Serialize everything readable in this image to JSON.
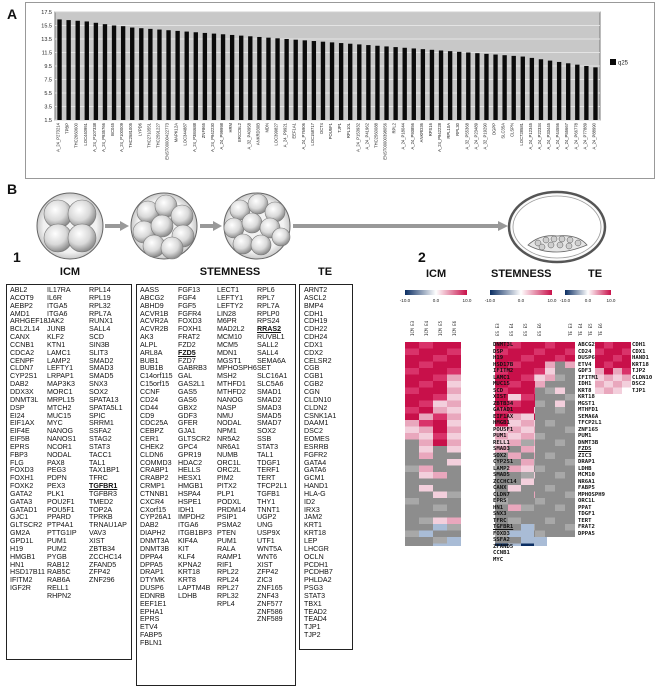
{
  "panels": {
    "a": "A",
    "b": "B",
    "one": "1",
    "two": "2"
  },
  "chart_data": {
    "type": "bar",
    "ylim": [
      1.5,
      17.5
    ],
    "yticks": [
      "17.5",
      "15.5",
      "13.5",
      "11.5",
      "9.5",
      "7.5",
      "5.5",
      "3.5",
      "1.5"
    ],
    "legend": "q25",
    "legend_position": "right",
    "grid": true,
    "series": [
      {
        "name": "q25",
        "values": [
          16.4,
          16.3,
          16.2,
          16.1,
          15.9,
          15.7,
          15.5,
          15.4,
          15.2,
          15.1,
          15.0,
          14.9,
          14.8,
          14.7,
          14.6,
          14.5,
          14.4,
          14.3,
          14.2,
          14.1,
          14.0,
          13.9,
          13.8,
          13.7,
          13.6,
          13.5,
          13.4,
          13.3,
          13.2,
          13.1,
          13.0,
          12.9,
          12.8,
          12.7,
          12.6,
          12.5,
          12.4,
          12.3,
          12.2,
          12.1,
          12.0,
          11.9,
          11.8,
          11.7,
          11.6,
          11.5,
          11.4,
          11.3,
          11.2,
          11.1,
          11.0,
          10.9,
          10.7,
          10.5,
          10.3,
          10.1,
          9.9,
          9.7,
          9.5,
          9.3
        ]
      }
    ],
    "categories": [
      "A_24_P273214",
      "TPBP",
      "THC2660600",
      "LOC440951",
      "A_24_P107338",
      "A_24_P935766",
      "BC045",
      "A_24_P100009",
      "THC2581005",
      "LYPD6",
      "THC2710551",
      "THC2591227",
      "ENST00000422773",
      "MAPK12A",
      "LOC344887",
      "A_24_P384688",
      "ZNF865",
      "A_24_P942230",
      "A_24_P99998",
      "HRM",
      "ERCC5L2",
      "A_32_P40958",
      "ANKRD30B",
      "MDN",
      "LOC399827",
      "A_24_P9921",
      "EEF1A1",
      "A_24_P76906",
      "LOC158717",
      "OCT4",
      "POU5F1",
      "TJP1",
      "RPL10L",
      "A_24_P153932",
      "A_24_P41962",
      "THC2560088",
      "ENST00000398056",
      "RPL2",
      "A_24_P18044",
      "A_24_P93856",
      "ANKRD36",
      "RPS16",
      "A_24_P942228",
      "RPL10A",
      "RPL30",
      "A_32_P55368",
      "A_24_P23489",
      "A_32_P19290",
      "DGPP",
      "SLC35A",
      "CLSPN",
      "LOC728581",
      "A_24_P12345",
      "A_24_P22334",
      "A_24_P33445",
      "A_24_P44556",
      "A_24_P55667",
      "A_24_P66778",
      "A_24_P77889",
      "A_24_P88990"
    ]
  },
  "lists": {
    "icm": {
      "title": "ICM",
      "col1": [
        "ABL2",
        "ACOT9",
        "AEBP2",
        "AMD1",
        "ARHGEF18",
        "BCL2L14",
        "CANX",
        "CCNB1",
        "CDCA2",
        "CENPF",
        "CLDN7",
        "CYP2S1",
        "DAB2",
        "DDX3X",
        "DNMT3L",
        "DSP",
        "EI24",
        "EIF1AX",
        "EIF4E",
        "EIF5B",
        "EPRS",
        "FBP3",
        "FLG",
        "FOXD3",
        "FOXH1",
        "FOXK2",
        "GATA2",
        "GATA3",
        "GATAD1",
        "GJC1",
        "GLTSCR2",
        "GM2A",
        "GPD1L",
        "H19",
        "HMGB1",
        "HN1",
        "HSD17B11",
        "IFITM2",
        "IGF2R"
      ],
      "col2": [
        "IL17RA",
        "IL6R",
        "ITGA5",
        "ITGA6",
        "JAK2",
        "JUNB",
        "KLF2",
        "KTN1",
        "LAMC1",
        "LAMP2",
        "LEFTY1",
        "LRPAP1",
        "MAP3K3",
        "MORC1",
        "MRPL15",
        "MTCH2",
        "MUC15",
        "MYC",
        "NANOG",
        "NANOS1",
        "NCOR1",
        "NODAL",
        "PAX8",
        "PEG3",
        "PDPN",
        "PEX3",
        "PLK1",
        "POU2F1",
        "POU5F1",
        "PPARD",
        "PTP4A1",
        "PTTG1IP",
        "PUM1",
        "PUM2",
        "PYGB",
        "RAB12",
        "RAB5C",
        "RAB6A",
        "RELL1",
        "RHPN2"
      ],
      "col3": [
        "RPL14",
        "RPL19",
        "RPL32",
        "RPL7A",
        "RUNX1",
        "SALL4",
        "SCD",
        "SIN3B",
        "SLIT3",
        "SMAD2",
        "SMAD3",
        "SMAD5",
        "SNX3",
        "SOX2",
        "SPATA13",
        "SPATA5L1",
        "SPIC",
        "SRRM1",
        "SSFA2",
        "STAG2",
        "STAT3",
        "TACC1",
        "TAL1",
        "TAX1BP1",
        "TFRC",
        "TGFBR1",
        "TGFBR3",
        "TMED2",
        "TOP2A",
        "TPRKB",
        "TRNAU1AP",
        "VAV3",
        "XIST",
        "ZBTB34",
        "ZCCHC14",
        "ZFAND5",
        "ZFP42",
        "ZNF296"
      ]
    },
    "stemness": {
      "title": "STEMNESS",
      "col1": [
        "AASS",
        "ABCG2",
        "ABHD9",
        "ACVR1B",
        "ACVR2A",
        "ACVR2B",
        "AK3",
        "ALPL",
        "ARL8A",
        "BUB1",
        "BUB1B",
        "C14orf115",
        "C15orf15",
        "CCNF",
        "CD24",
        "CD44",
        "CD9",
        "CDC25A",
        "CEBPZ",
        "CER1",
        "CHEK2",
        "CLDN6",
        "COMMD3",
        "CRABP1",
        "CRABP2",
        "CRMP1",
        "CTNNB1",
        "CXCR4",
        "CXorf15",
        "CYP26A1",
        "DAB2",
        "DIAPH2",
        "DNMT3A",
        "DNMT3B",
        "DPPA4",
        "DPPA5",
        "DRAP1",
        "DTYMK",
        "DUSP6",
        "EDNRB",
        "EEF1E1",
        "EPHA1",
        "EPRS",
        "ETV4",
        "FABP5",
        "FBLN1"
      ],
      "col2": [
        "FGF13",
        "FGF4",
        "FGF5",
        "FGFR4",
        "FOXD3",
        "FOXH1",
        "FRAT2",
        "FZD2",
        "FZD5",
        "FZD7",
        "GABRB3",
        "GAL",
        "GAS2L1",
        "GAS5",
        "GAS6",
        "GBX2",
        "GDF3",
        "GFER",
        "GJA1",
        "GLTSCR2",
        "GPC4",
        "GPR19",
        "HDAC2",
        "HELLS",
        "HESX1",
        "HMGB1",
        "HSPA4",
        "HSPE1",
        "IDH1",
        "IMPDH2",
        "ITGA6",
        "ITGB1BP3",
        "KIF4A",
        "KIT",
        "KLF4",
        "KPNA2",
        "KRT18",
        "KRT8",
        "LAPTM4B",
        "LDHB"
      ],
      "col3": [
        "LECT1",
        "LEFTY1",
        "LEFTY2",
        "LIN28",
        "M6PR",
        "MAD2L2",
        "MCM10",
        "MCM5",
        "MDN1",
        "MGST1",
        "MPHOSPH6",
        "MSH2",
        "MTHFD1",
        "MTHFD2",
        "NANOG",
        "NASP",
        "NMU",
        "NODAL",
        "NPM1",
        "NR5A2",
        "NR6A1",
        "NUMB",
        "ORC1L",
        "ORC2L",
        "PIM2",
        "PITX2",
        "PLP1",
        "PODXL",
        "PRDM14",
        "PSIP1",
        "PSMA2",
        "PTEN",
        "PUM1",
        "RALA",
        "RAMP1",
        "RIF1",
        "RPL22",
        "RPL24",
        "RPL27",
        "RPL32",
        "RPL4"
      ],
      "col4": [
        "RPL6",
        "RPL7",
        "RPL7A",
        "RPLP0",
        "RPS24",
        "RRAS2",
        "RUVBL1",
        "SALL2",
        "SALL4",
        "SEMA6A",
        "SET",
        "SLC16A1",
        "SLC5A6",
        "SMAD1",
        "SMAD2",
        "SMAD3",
        "SMAD5",
        "SMAD7",
        "SOX2",
        "SSB",
        "STAT3",
        "TAL1",
        "TDGF1",
        "TERF1",
        "TERT",
        "TFCP2L1",
        "TGFB1",
        "THY1",
        "TNNT1",
        "UGP2",
        "UNG",
        "USP9X",
        "UTF1",
        "WNT5A",
        "WNT6",
        "XIST",
        "ZFP42",
        "ZIC3",
        "ZNF165",
        "ZNF43",
        "ZNF577",
        "ZNF586",
        "ZNF589"
      ]
    },
    "te": {
      "title": "TE",
      "col1": [
        "ARNT2",
        "ASCL2",
        "BMP4",
        "CDH1",
        "CDH19",
        "CDH22",
        "CDH24",
        "CDX1",
        "CDX2",
        "CELSR2",
        "CGB",
        "CGB1",
        "CGB2",
        "CGN",
        "CLDN10",
        "CLDN2",
        "CSNK1A1",
        "DAAM1",
        "DSC2",
        "EOMES",
        "ESRRB",
        "FGFR2",
        "GATA4",
        "GATA6",
        "GCM1",
        "HAND1",
        "HLA-G",
        "ID2",
        "IRX3",
        "JAM2",
        "KRT1",
        "KRT18",
        "LEP",
        "LHCGR",
        "OCLN",
        "PCDH1",
        "PCDHB7",
        "PHLDA2",
        "PSG3",
        "STAT3",
        "TBX1",
        "TEAD2",
        "TEAD4",
        "TJP1",
        "TJP2"
      ]
    }
  },
  "heatmaps": {
    "icm": {
      "title": "ICM",
      "scale": [
        "-10.0",
        "0.0",
        "10.0"
      ],
      "cols": [
        "ICM E3",
        "ICM E4",
        "ICM E5",
        "ICM E6"
      ],
      "rows": [
        "DNMT3L",
        "DSP",
        "H19",
        "HSD17B",
        "IFITM2",
        "LAMC1",
        "MUC15",
        "SCD",
        "XIST",
        "ZBTB34",
        "GATAD1",
        "EIF1AX",
        "HMGB1",
        "POU5F1",
        "PUM1",
        "RELL1",
        "SMAD3",
        "SOX2",
        "CYP2S1",
        "LAMP2",
        "SMAD5",
        "ZCCHC14",
        "CANX",
        "CLDN7",
        "EPRS",
        "HN1",
        "SNX3",
        "TFRC",
        "TGFBR1",
        "FOXD3",
        "SSFA2",
        "ZFAND5",
        "CCNB1",
        "MYC"
      ]
    },
    "stemness": {
      "title": "STEMNESS",
      "scale": [
        "-10.0",
        "0.0",
        "10.0"
      ],
      "cols": [
        "ES E3",
        "ES E4",
        "ES E5",
        "ES E6"
      ]
    },
    "te": {
      "title": "TE",
      "scale": [
        "-10.0",
        "0.0",
        "10.0"
      ],
      "cols": [
        "TE E3",
        "TE E4",
        "TE E5",
        "TE E6"
      ],
      "rows_left": [
        "ABCG2",
        "CD24",
        "DUSP6",
        "ETV4",
        "GDF3",
        "IFITM1",
        "IDH1",
        "KRT8",
        "KRT18",
        "MGST1",
        "MTHFD1",
        "SEMA6A",
        "TFCP2L1",
        "ZNF165",
        "PUM1",
        "DNMT3B",
        "FZD5",
        "ZIC3",
        "DRAP1",
        "LDHB",
        "MCM10",
        "NR6A1",
        "FABP5",
        "MPHOSPH9",
        "ORC1L",
        "PPAT",
        "TDGF1",
        "TERT",
        "FRAT2",
        "DPPA5"
      ],
      "rows_right": [
        "CDH1",
        "CDX1",
        "HAND1",
        "KRT18",
        "TJP2",
        "CLDN10",
        "DSC2",
        "TJP1"
      ]
    }
  },
  "colors": {
    "bar": "#0a0a0a",
    "high": "#c8104a",
    "mid": "#e9a7bd",
    "neutral": "#8a8a8a",
    "low": "#0b2e63"
  }
}
